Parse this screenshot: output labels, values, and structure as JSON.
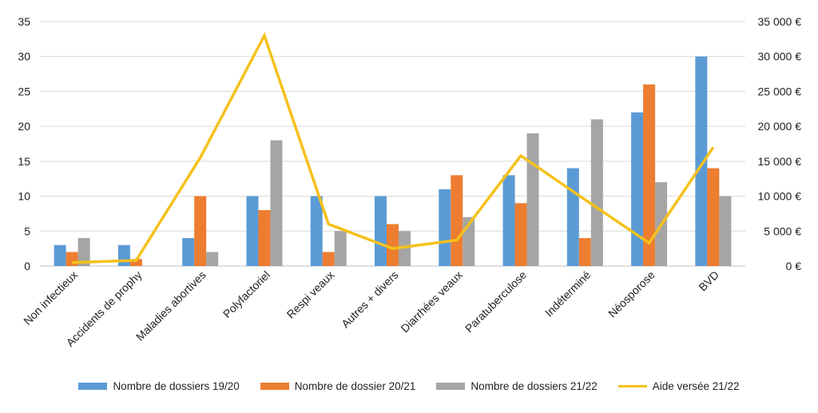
{
  "chart_data": {
    "type": "bar",
    "categories": [
      "Non infectieux",
      "Accidents de prophy",
      "Maladies abortives",
      "Polyfactoriel",
      "Respi veaux",
      "Autres + divers",
      "Diarrhées veaux",
      "Paratuberculose",
      "Indéterminé",
      "Néosporose",
      "BVD"
    ],
    "series": [
      {
        "name": "Nombre de dossiers 19/20",
        "type": "bar",
        "axis": "left",
        "color": "#5B9BD5",
        "values": [
          3,
          3,
          4,
          10,
          10,
          10,
          11,
          13,
          14,
          22,
          30
        ]
      },
      {
        "name": "Nombre de dossier 20/21",
        "type": "bar",
        "axis": "left",
        "color": "#ED7D31",
        "values": [
          2,
          1,
          10,
          8,
          2,
          6,
          13,
          9,
          4,
          26,
          14
        ]
      },
      {
        "name": "Nombre de dossiers 21/22",
        "type": "bar",
        "axis": "left",
        "color": "#A5A5A5",
        "values": [
          4,
          0,
          2,
          18,
          5,
          5,
          7,
          19,
          21,
          12,
          10
        ]
      },
      {
        "name": "Aide versée 21/22",
        "type": "line",
        "axis": "right",
        "color": "#F5C11B",
        "values": [
          500,
          800,
          15500,
          33000,
          6000,
          2500,
          3700,
          15800,
          9500,
          3300,
          17000
        ]
      }
    ],
    "ylim": [
      0,
      35
    ],
    "y_ticks": [
      "0",
      "5",
      "10",
      "15",
      "20",
      "25",
      "30",
      "35"
    ],
    "y2lim": [
      0,
      35000
    ],
    "y2_ticks": [
      "0 €",
      "5 000 €",
      "10 000 €",
      "15 000 €",
      "20 000 €",
      "25 000 €",
      "30 000 €",
      "35 000 €"
    ],
    "grid": true,
    "legend_position": "bottom"
  },
  "legend": {
    "items": [
      {
        "label": "Nombre de dossiers 19/20",
        "color": "#5B9BD5",
        "kind": "bar"
      },
      {
        "label": "Nombre de dossier 20/21",
        "color": "#ED7D31",
        "kind": "bar"
      },
      {
        "label": "Nombre de dossiers 21/22",
        "color": "#A5A5A5",
        "kind": "bar"
      },
      {
        "label": "Aide versée 21/22",
        "color": "#F5C11B",
        "kind": "line"
      }
    ]
  }
}
